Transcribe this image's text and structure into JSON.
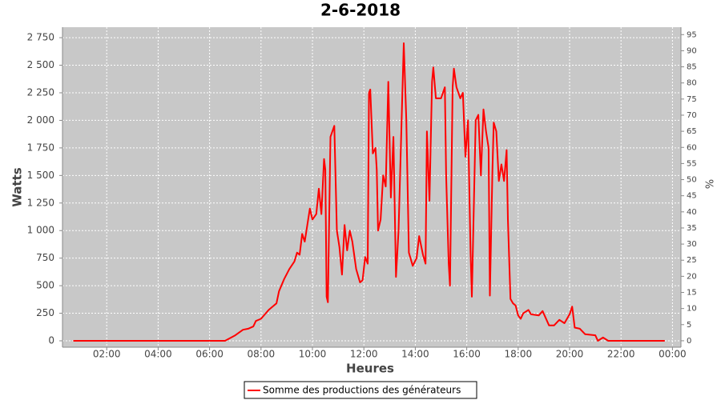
{
  "chart_data": {
    "type": "line",
    "title": "2-6-2018",
    "xlabel": "Heures",
    "ylabel": "Watts",
    "y2label": "%",
    "xlim": [
      0.28,
      24.33
    ],
    "xticks": [
      {
        "value": 2,
        "label": "02:00"
      },
      {
        "value": 4,
        "label": "04:00"
      },
      {
        "value": 6,
        "label": "06:00"
      },
      {
        "value": 8,
        "label": "08:00"
      },
      {
        "value": 10,
        "label": "10:00"
      },
      {
        "value": 12,
        "label": "12:00"
      },
      {
        "value": 14,
        "label": "14:00"
      },
      {
        "value": 16,
        "label": "16:00"
      },
      {
        "value": 18,
        "label": "18:00"
      },
      {
        "value": 20,
        "label": "20:00"
      },
      {
        "value": 22,
        "label": "22:00"
      },
      {
        "value": 24,
        "label": "00:00"
      }
    ],
    "ylim": [
      -58,
      2845
    ],
    "yticks": [
      0,
      250,
      500,
      750,
      {
        "value": 1000,
        "label": "1 000"
      },
      {
        "value": 1250,
        "label": "1 250"
      },
      {
        "value": 1500,
        "label": "1 500"
      },
      {
        "value": 1750,
        "label": "1 750"
      },
      {
        "value": 2000,
        "label": "2 000"
      },
      {
        "value": 2250,
        "label": "2 250"
      },
      {
        "value": 2500,
        "label": "2 500"
      },
      {
        "value": 2750,
        "label": "2 750"
      }
    ],
    "y2lim": [
      -2,
      97.3
    ],
    "y2ticks": [
      0,
      5,
      10,
      15,
      20,
      25,
      30,
      35,
      40,
      45,
      50,
      55,
      60,
      65,
      70,
      75,
      80,
      85,
      90,
      95
    ],
    "grid": true,
    "legend": "bottom",
    "series": [
      {
        "name": "Somme des productions des  générateurs",
        "color": "#ff0000",
        "x": [
          0.7,
          6.6,
          7.0,
          7.3,
          7.5,
          7.7,
          7.8,
          8.0,
          8.3,
          8.6,
          8.7,
          8.9,
          9.1,
          9.3,
          9.4,
          9.5,
          9.6,
          9.7,
          9.8,
          9.9,
          10.0,
          10.15,
          10.25,
          10.35,
          10.45,
          10.5,
          10.55,
          10.6,
          10.7,
          10.85,
          10.95,
          11.05,
          11.15,
          11.25,
          11.35,
          11.45,
          11.55,
          11.7,
          11.85,
          11.95,
          12.05,
          12.15,
          12.2,
          12.25,
          12.35,
          12.45,
          12.5,
          12.55,
          12.65,
          12.75,
          12.85,
          12.95,
          13.05,
          13.15,
          13.25,
          13.35,
          13.55,
          13.65,
          13.75,
          13.9,
          14.05,
          14.15,
          14.3,
          14.4,
          14.45,
          14.55,
          14.65,
          14.7,
          14.8,
          15.0,
          15.15,
          15.2,
          15.3,
          15.35,
          15.45,
          15.5,
          15.6,
          15.75,
          15.85,
          15.95,
          16.05,
          16.15,
          16.2,
          16.35,
          16.45,
          16.55,
          16.65,
          16.75,
          16.85,
          16.9,
          17.0,
          17.05,
          17.15,
          17.25,
          17.35,
          17.45,
          17.55,
          17.6,
          17.7,
          17.8,
          17.9,
          18.0,
          18.1,
          18.2,
          18.4,
          18.5,
          18.8,
          18.95,
          19.2,
          19.4,
          19.6,
          19.8,
          20.0,
          20.1,
          20.2,
          20.4,
          20.6,
          21.0,
          21.1,
          21.3,
          21.5,
          23.7
        ],
        "values": [
          0,
          0,
          50,
          100,
          110,
          130,
          180,
          200,
          280,
          340,
          450,
          560,
          650,
          720,
          800,
          780,
          970,
          900,
          1050,
          1200,
          1100,
          1150,
          1380,
          1150,
          1650,
          1550,
          400,
          350,
          1850,
          1950,
          1000,
          850,
          600,
          1050,
          820,
          1000,
          900,
          650,
          530,
          550,
          760,
          700,
          2250,
          2280,
          1700,
          1750,
          1550,
          1000,
          1100,
          1500,
          1400,
          2350,
          1300,
          1850,
          580,
          1000,
          2700,
          2000,
          800,
          680,
          750,
          950,
          780,
          700,
          1900,
          1270,
          2350,
          2480,
          2200,
          2200,
          2300,
          1500,
          700,
          500,
          2300,
          2470,
          2300,
          2200,
          2250,
          1670,
          2000,
          800,
          400,
          2000,
          2050,
          1500,
          2100,
          1900,
          1750,
          410,
          1550,
          1980,
          1900,
          1450,
          1600,
          1450,
          1730,
          1100,
          380,
          340,
          320,
          230,
          200,
          250,
          280,
          240,
          230,
          270,
          140,
          140,
          190,
          160,
          240,
          310,
          120,
          110,
          60,
          50,
          0,
          30,
          0,
          0
        ]
      }
    ]
  }
}
